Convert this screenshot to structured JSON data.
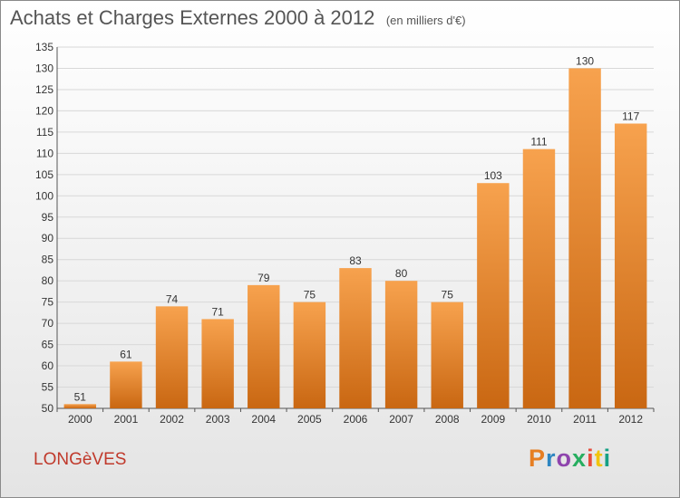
{
  "header": {
    "title": "Achats et Charges Externes 2000 à 2012",
    "subtitle": "(en milliers d'€)"
  },
  "footer": {
    "commune": "LONGèVES",
    "brand": "Proxiti"
  },
  "colors": {
    "bar_top": "#f7a24e",
    "bar_bottom": "#c96712",
    "grid": "#d8d8d8"
  },
  "chart_data": {
    "type": "bar",
    "title": "Achats et Charges Externes 2000 à 2012",
    "subtitle": "(en milliers d'€)",
    "categories": [
      "2000",
      "2001",
      "2002",
      "2003",
      "2004",
      "2005",
      "2006",
      "2007",
      "2008",
      "2009",
      "2010",
      "2011",
      "2012"
    ],
    "values": [
      51,
      61,
      74,
      71,
      79,
      75,
      83,
      80,
      75,
      103,
      111,
      130,
      117
    ],
    "ylim": [
      50,
      135
    ],
    "yticks": [
      50,
      55,
      60,
      65,
      70,
      75,
      80,
      85,
      90,
      95,
      100,
      105,
      110,
      115,
      120,
      125,
      130,
      135
    ],
    "grid": true,
    "xlabel": "",
    "ylabel": ""
  }
}
